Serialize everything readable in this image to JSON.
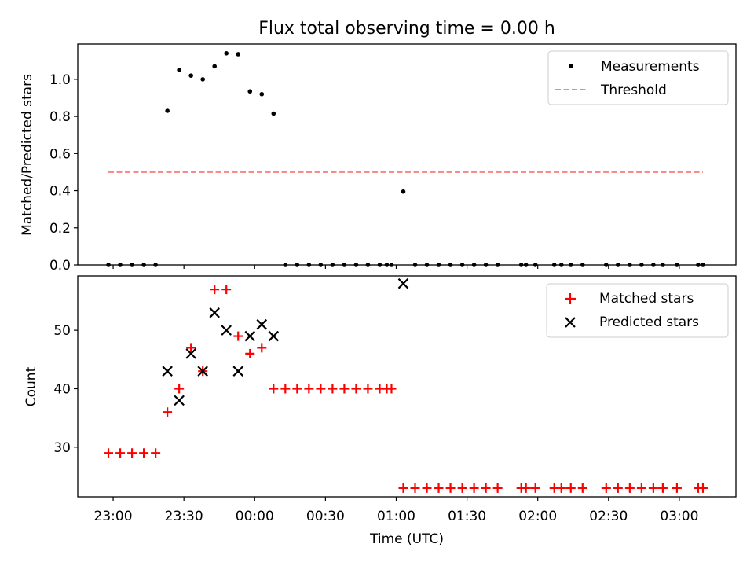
{
  "figure": {
    "title": "Flux total observing time = 0.00 h"
  },
  "chart_data": [
    {
      "type": "scatter",
      "panel": "top",
      "ylabel": "Matched/Predicted stars",
      "ylim": [
        0,
        1.19
      ],
      "yticks": [
        "0.0",
        "0.2",
        "0.4",
        "0.6",
        "0.8",
        "1.0"
      ],
      "xlim_minutes_from_2300": [
        -15,
        264
      ],
      "threshold": {
        "value": 0.5,
        "x_start": "22:58",
        "x_end": "03:10",
        "color": "#ff8080"
      },
      "legend": {
        "position": "top-right",
        "entries": [
          "Measurements",
          "Threshold"
        ]
      },
      "series": [
        {
          "name": "Measurements",
          "color": "#000000",
          "points": [
            [
              "22:58",
              0.0
            ],
            [
              "23:03",
              0.0
            ],
            [
              "23:08",
              0.0
            ],
            [
              "23:13",
              0.0
            ],
            [
              "23:18",
              0.0
            ],
            [
              "23:23",
              0.83
            ],
            [
              "23:28",
              1.05
            ],
            [
              "23:33",
              1.02
            ],
            [
              "23:38",
              1.0
            ],
            [
              "23:43",
              1.07
            ],
            [
              "23:48",
              1.14
            ],
            [
              "23:53",
              1.135
            ],
            [
              "23:58",
              0.935
            ],
            [
              "00:03",
              0.92
            ],
            [
              "00:08",
              0.815
            ],
            [
              "00:13",
              0.0
            ],
            [
              "00:18",
              0.0
            ],
            [
              "00:23",
              0.0
            ],
            [
              "00:28",
              0.0
            ],
            [
              "00:33",
              0.0
            ],
            [
              "00:38",
              0.0
            ],
            [
              "00:43",
              0.0
            ],
            [
              "00:48",
              0.0
            ],
            [
              "00:53",
              0.0
            ],
            [
              "00:56",
              0.0
            ],
            [
              "00:58",
              0.0
            ],
            [
              "01:03",
              0.395
            ],
            [
              "01:08",
              0.0
            ],
            [
              "01:13",
              0.0
            ],
            [
              "01:18",
              0.0
            ],
            [
              "01:23",
              0.0
            ],
            [
              "01:28",
              0.0
            ],
            [
              "01:33",
              0.0
            ],
            [
              "01:38",
              0.0
            ],
            [
              "01:43",
              0.0
            ],
            [
              "01:53",
              0.0
            ],
            [
              "01:55",
              0.0
            ],
            [
              "01:59",
              0.0
            ],
            [
              "02:07",
              0.0
            ],
            [
              "02:10",
              0.0
            ],
            [
              "02:14",
              0.0
            ],
            [
              "02:19",
              0.0
            ],
            [
              "02:29",
              0.0
            ],
            [
              "02:34",
              0.0
            ],
            [
              "02:39",
              0.0
            ],
            [
              "02:44",
              0.0
            ],
            [
              "02:49",
              0.0
            ],
            [
              "02:53",
              0.0
            ],
            [
              "02:59",
              0.0
            ],
            [
              "03:08",
              0.0
            ],
            [
              "03:10",
              0.0
            ]
          ]
        }
      ]
    },
    {
      "type": "scatter",
      "panel": "bottom",
      "ylabel": "Count",
      "xlabel": "Time (UTC)",
      "ylim": [
        21.5,
        59.3
      ],
      "yticks": [
        "30",
        "40",
        "50"
      ],
      "xticks": [
        "23:00",
        "23:30",
        "00:00",
        "00:30",
        "01:00",
        "01:30",
        "02:00",
        "02:30",
        "03:00"
      ],
      "legend": {
        "position": "top-right",
        "entries": [
          "Matched stars",
          "Predicted stars"
        ]
      },
      "series": [
        {
          "name": "Matched stars",
          "marker": "+",
          "color": "#ff0000",
          "points": [
            [
              "22:58",
              29
            ],
            [
              "23:03",
              29
            ],
            [
              "23:08",
              29
            ],
            [
              "23:13",
              29
            ],
            [
              "23:18",
              29
            ],
            [
              "23:23",
              36
            ],
            [
              "23:28",
              40
            ],
            [
              "23:33",
              47
            ],
            [
              "23:38",
              43
            ],
            [
              "23:43",
              57
            ],
            [
              "23:48",
              57
            ],
            [
              "23:53",
              49
            ],
            [
              "23:58",
              46
            ],
            [
              "00:03",
              47
            ],
            [
              "00:08",
              40
            ],
            [
              "00:13",
              40
            ],
            [
              "00:18",
              40
            ],
            [
              "00:23",
              40
            ],
            [
              "00:28",
              40
            ],
            [
              "00:33",
              40
            ],
            [
              "00:38",
              40
            ],
            [
              "00:43",
              40
            ],
            [
              "00:48",
              40
            ],
            [
              "00:53",
              40
            ],
            [
              "00:56",
              40
            ],
            [
              "00:58",
              40
            ],
            [
              "01:03",
              23
            ],
            [
              "01:08",
              23
            ],
            [
              "01:13",
              23
            ],
            [
              "01:18",
              23
            ],
            [
              "01:23",
              23
            ],
            [
              "01:28",
              23
            ],
            [
              "01:33",
              23
            ],
            [
              "01:38",
              23
            ],
            [
              "01:43",
              23
            ],
            [
              "01:53",
              23
            ],
            [
              "01:55",
              23
            ],
            [
              "01:59",
              23
            ],
            [
              "02:07",
              23
            ],
            [
              "02:10",
              23
            ],
            [
              "02:14",
              23
            ],
            [
              "02:19",
              23
            ],
            [
              "02:29",
              23
            ],
            [
              "02:34",
              23
            ],
            [
              "02:39",
              23
            ],
            [
              "02:44",
              23
            ],
            [
              "02:49",
              23
            ],
            [
              "02:53",
              23
            ],
            [
              "02:59",
              23
            ],
            [
              "03:08",
              23
            ],
            [
              "03:10",
              23
            ]
          ]
        },
        {
          "name": "Predicted stars",
          "marker": "x",
          "color": "#000000",
          "points": [
            [
              "23:23",
              43
            ],
            [
              "23:28",
              38
            ],
            [
              "23:33",
              46
            ],
            [
              "23:38",
              43
            ],
            [
              "23:43",
              53
            ],
            [
              "23:48",
              50
            ],
            [
              "23:53",
              43
            ],
            [
              "23:58",
              49
            ],
            [
              "00:03",
              51
            ],
            [
              "00:08",
              49
            ],
            [
              "01:03",
              58
            ]
          ]
        }
      ]
    }
  ]
}
